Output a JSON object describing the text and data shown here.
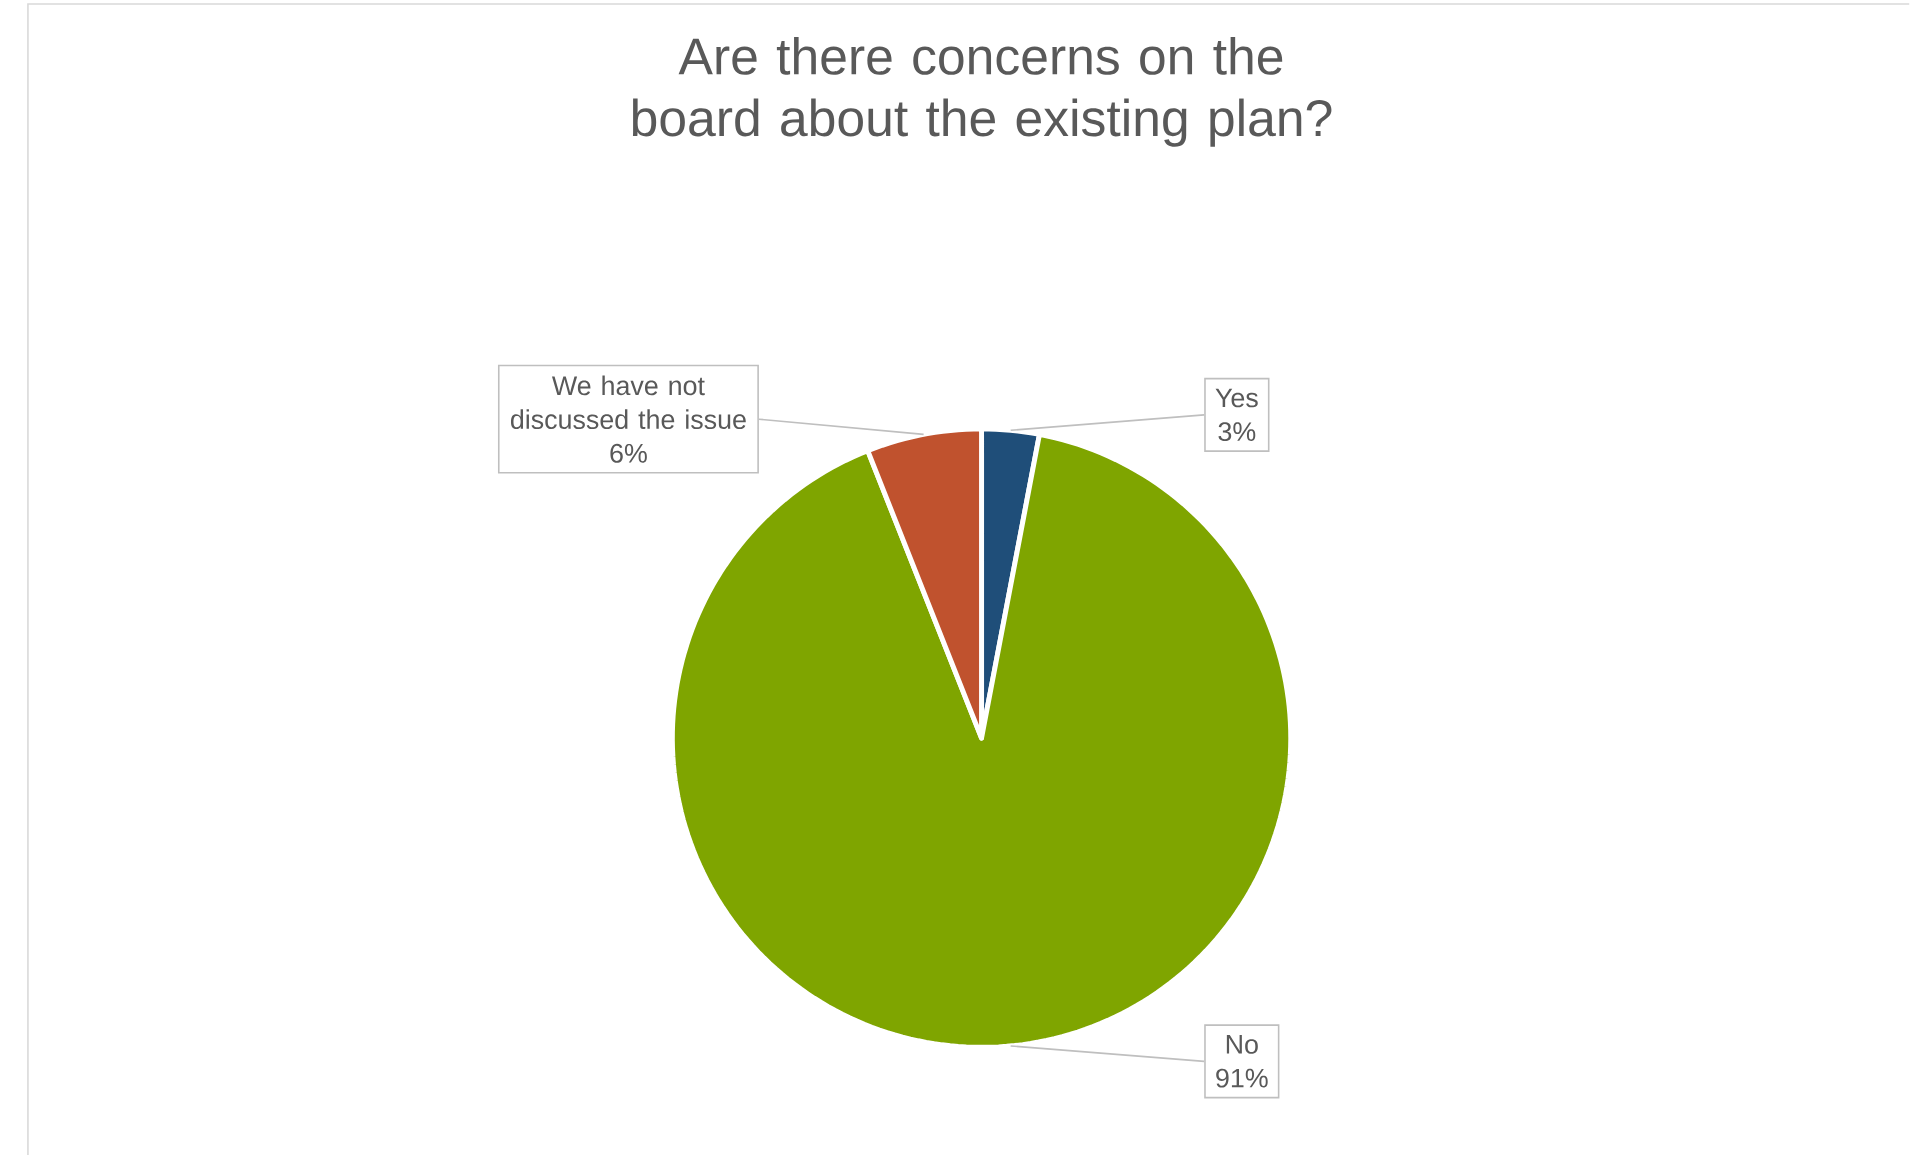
{
  "chart_data": {
    "type": "pie",
    "title": "Are there concerns on the board about the existing plan?",
    "categories": [
      "Yes",
      "No",
      "We have not discussed the issue"
    ],
    "values": [
      3,
      91,
      6
    ],
    "value_labels": [
      "3%",
      "91%",
      "6%"
    ],
    "colors": [
      "#1f4e79",
      "#7fa500",
      "#c0522e"
    ]
  }
}
